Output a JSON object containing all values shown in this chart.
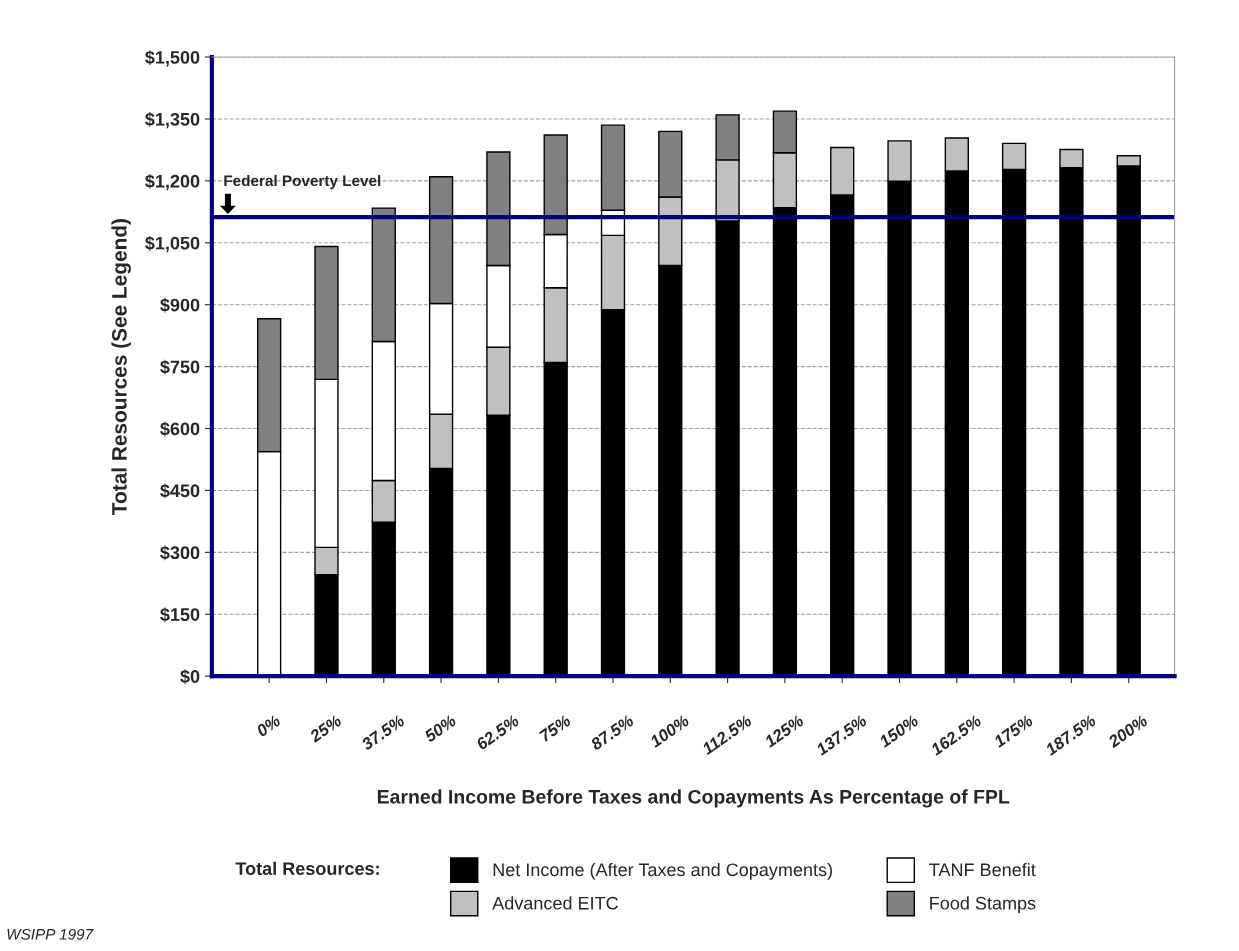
{
  "chart_data": {
    "type": "bar",
    "stacked": true,
    "categories": [
      "0%",
      "25%",
      "37.5%",
      "50%",
      "62.5%",
      "75%",
      "87.5%",
      "100%",
      "112.5%",
      "125%",
      "137.5%",
      "150%",
      "162.5%",
      "175%",
      "187.5%",
      "200%"
    ],
    "series": [
      {
        "name": "Net Income (After Taxes and Copayments)",
        "color": "#000000",
        "values": [
          null,
          246,
          373,
          503,
          632,
          760,
          888,
          995,
          1103,
          1135,
          1166,
          1199,
          1224,
          1228,
          1232,
          1236
        ]
      },
      {
        "name": "Advanced EITC",
        "color": "#c0c0c0",
        "values": [
          null,
          66,
          101,
          132,
          165,
          181,
          180,
          166,
          148,
          133,
          115,
          98,
          80,
          63,
          44,
          25
        ]
      },
      {
        "name": "TANF Benefit",
        "color": "#ffffff",
        "values": [
          544,
          407,
          337,
          268,
          198,
          129,
          61,
          null,
          null,
          null,
          null,
          null,
          null,
          null,
          null,
          null
        ]
      },
      {
        "name": "Food Stamps",
        "color": "#808080",
        "values": [
          322,
          322,
          323,
          307,
          275,
          241,
          206,
          159,
          109,
          101,
          null,
          null,
          null,
          null,
          null,
          null
        ]
      }
    ],
    "ylim": [
      0,
      1500
    ],
    "yticks": [
      {
        "value": 0,
        "label": "$0"
      },
      {
        "value": 150,
        "label": "$150"
      },
      {
        "value": 300,
        "label": "$300"
      },
      {
        "value": 450,
        "label": "$450"
      },
      {
        "value": 600,
        "label": "$600"
      },
      {
        "value": 750,
        "label": "$750"
      },
      {
        "value": 900,
        "label": "$900"
      },
      {
        "value": 1050,
        "label": "$1,050"
      },
      {
        "value": 1200,
        "label": "$1,200"
      },
      {
        "value": 1350,
        "label": "$1,350"
      },
      {
        "value": 1500,
        "label": "$1,500"
      }
    ],
    "ylabel": "Total Resources (See Legend)",
    "xlabel": "Earned Income Before Taxes and Copayments As Percentage of FPL",
    "legend_title": "Total Resources:",
    "legend": "bottom",
    "grid": "y",
    "line_style": "dashed",
    "ref_lines": [
      {
        "axis": "y",
        "value": 1112,
        "label": "Federal Poverty Level",
        "color": "#000080"
      }
    ],
    "annotations": [
      "WSIPP 1997"
    ]
  }
}
